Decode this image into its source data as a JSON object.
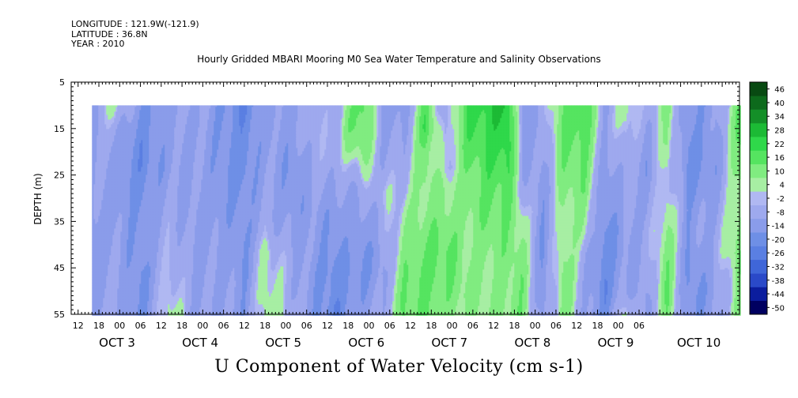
{
  "header": {
    "longitude": "LONGITUDE : 121.9W(-121.9)",
    "latitude": "LATITUDE : 36.8N",
    "year": "YEAR : 2010"
  },
  "chart_data": {
    "type": "heatmap",
    "title": "Hourly Gridded MBARI Mooring M0 Sea Water Temperature and Salinity Observations",
    "xlabel": "U Component of Water Velocity (cm s-1)",
    "ylabel": "DEPTH (m)",
    "ylim": [
      55,
      5
    ],
    "y_ticks": [
      55,
      45,
      35,
      25,
      15,
      5
    ],
    "x_range": [
      "OCT 2 10:00",
      "OCT 10 11:00"
    ],
    "data_extent_x": [
      "OCT 2 16:00",
      "OCT 10 11:00"
    ],
    "data_extent_depth": [
      10,
      55
    ],
    "x_hour_ticks": [
      "12",
      "18",
      "00",
      "06",
      "12",
      "18",
      "00",
      "06",
      "12",
      "18",
      "00",
      "06",
      "12",
      "18",
      "00",
      "06",
      "12",
      "18",
      "00",
      "06",
      "12",
      "18",
      "00",
      "06",
      "12",
      "18",
      "00",
      "06"
    ],
    "x_day_labels": [
      "OCT 3",
      "OCT 4",
      "OCT 5",
      "OCT 6",
      "OCT 7",
      "OCT 8",
      "OCT 9",
      "OCT 10"
    ],
    "colorbar": {
      "levels": [
        -50,
        -44,
        -38,
        -32,
        -26,
        -20,
        -14,
        -8,
        -2,
        4,
        10,
        16,
        22,
        28,
        34,
        40,
        46
      ],
      "label_values": [
        -50,
        -44,
        -38,
        -32,
        -26,
        -20,
        -14,
        -8,
        -2,
        4,
        10,
        16,
        22,
        28,
        34,
        40,
        46
      ],
      "colors_low": [
        "#000060",
        "#0b1d9e",
        "#2a49c8",
        "#3f66d8",
        "#5a7fe2",
        "#6e8fe6",
        "#8a9cea",
        "#9ea9ee",
        "#b0b8f2"
      ],
      "colors_high": [
        "#c8f0c0",
        "#a7eea3",
        "#80ec80",
        "#55e460",
        "#2fd84a",
        "#1cba35",
        "#148f28",
        "#0d6a1c",
        "#084a12"
      ]
    },
    "field_colors": {
      "neg_strong": "#3d66e6",
      "neg_weak": "#a3b0ef",
      "pos_weak": "#a8f0a4",
      "pos_strong": "#22e25a"
    },
    "depth_profile_cm_s": [
      {
        "time": "OCT 2 16:00",
        "values": [
          -8,
          -6,
          -6,
          -7,
          -8,
          -10,
          -12,
          -12,
          -12,
          -10,
          -8
        ]
      },
      {
        "time": "OCT 2 22:00",
        "values": [
          2,
          -4,
          -8,
          -10,
          -11,
          -10,
          -9,
          -8,
          -6,
          -6,
          -5
        ]
      },
      {
        "time": "OCT 3 06:00",
        "values": [
          -14,
          -16,
          -18,
          -18,
          -16,
          -14,
          -14,
          -15,
          -16,
          -16,
          -16
        ]
      },
      {
        "time": "OCT 3 14:00",
        "values": [
          -10,
          -9,
          -10,
          -10,
          -8,
          -6,
          -4,
          -2,
          0,
          2,
          4
        ]
      },
      {
        "time": "OCT 3 22:00",
        "values": [
          -6,
          -8,
          -8,
          -8,
          -9,
          -10,
          -10,
          -10,
          -9,
          -9,
          -8
        ]
      },
      {
        "time": "OCT 4 06:00",
        "values": [
          -14,
          -14,
          -14,
          -14,
          -12,
          -12,
          -10,
          -9,
          -8,
          -8,
          -8
        ]
      },
      {
        "time": "OCT 4 12:00",
        "values": [
          -20,
          -18,
          -18,
          -17,
          -16,
          -14,
          -14,
          -14,
          -14,
          -12,
          -12
        ]
      },
      {
        "time": "OCT 4 18:00",
        "values": [
          -10,
          -10,
          -9,
          -8,
          -7,
          -6,
          -4,
          2,
          3,
          4,
          4
        ]
      },
      {
        "time": "OCT 5 02:00",
        "values": [
          -10,
          -10,
          -12,
          -14,
          -14,
          -12,
          -10,
          -8,
          -6,
          -6,
          -4
        ]
      },
      {
        "time": "OCT 5 08:00",
        "values": [
          -4,
          -3,
          -4,
          -6,
          -8,
          -10,
          -10,
          -10,
          -12,
          -12,
          -12
        ]
      },
      {
        "time": "OCT 5 14:00",
        "values": [
          -6,
          -5,
          -4,
          -5,
          -8,
          -12,
          -14,
          -16,
          -18,
          -18,
          -20
        ]
      },
      {
        "time": "OCT 5 18:00",
        "values": [
          6,
          8,
          4,
          -4,
          -8,
          -10,
          -10,
          -12,
          -14,
          -14,
          -12
        ]
      },
      {
        "time": "OCT 5 22:00",
        "values": [
          14,
          12,
          8,
          2,
          -6,
          -10,
          -12,
          -14,
          -14,
          -12,
          -10
        ]
      },
      {
        "time": "OCT 6 04:00",
        "values": [
          -10,
          -8,
          -8,
          -6,
          -2,
          -4,
          -6,
          -10,
          -10,
          -8,
          -6
        ]
      },
      {
        "time": "OCT 6 10:00",
        "values": [
          -12,
          -10,
          -6,
          -4,
          -2,
          2,
          4,
          6,
          8,
          10,
          10
        ]
      },
      {
        "time": "OCT 6 16:00",
        "values": [
          12,
          16,
          10,
          8,
          6,
          6,
          8,
          10,
          12,
          10,
          10
        ]
      },
      {
        "time": "OCT 6 22:00",
        "values": [
          -8,
          -6,
          -4,
          -2,
          4,
          6,
          10,
          12,
          10,
          8,
          6
        ]
      },
      {
        "time": "OCT 7 04:00",
        "values": [
          16,
          14,
          12,
          8,
          6,
          6,
          4,
          4,
          6,
          6,
          4
        ]
      },
      {
        "time": "OCT 7 10:00",
        "values": [
          20,
          18,
          16,
          14,
          12,
          10,
          8,
          6,
          4,
          4,
          4
        ]
      },
      {
        "time": "OCT 7 16:00",
        "values": [
          24,
          22,
          20,
          16,
          12,
          10,
          8,
          8,
          6,
          6,
          6
        ]
      },
      {
        "time": "OCT 7 20:00",
        "values": [
          -12,
          -10,
          -8,
          -6,
          -4,
          2,
          4,
          6,
          8,
          8,
          8
        ]
      },
      {
        "time": "OCT 8 02:00",
        "values": [
          -6,
          -8,
          -8,
          -10,
          -12,
          -12,
          -14,
          -14,
          -14,
          -14,
          -12
        ]
      },
      {
        "time": "OCT 8 08:00",
        "values": [
          10,
          12,
          10,
          8,
          6,
          4,
          4,
          6,
          8,
          8,
          8
        ]
      },
      {
        "time": "OCT 8 14:00",
        "values": [
          16,
          14,
          12,
          10,
          8,
          4,
          2,
          -4,
          -6,
          -6,
          -8
        ]
      },
      {
        "time": "OCT 8 20:00",
        "values": [
          -8,
          -8,
          -10,
          -12,
          -14,
          -14,
          -16,
          -18,
          -18,
          -18,
          -16
        ]
      },
      {
        "time": "OCT 9 02:00",
        "values": [
          4,
          2,
          -2,
          -4,
          -6,
          -8,
          -10,
          -10,
          -8,
          -6,
          4
        ]
      },
      {
        "time": "OCT 9 08:00",
        "values": [
          -6,
          -8,
          -10,
          -12,
          -10,
          -8,
          -6,
          -6,
          -8,
          -10,
          -10
        ]
      },
      {
        "time": "OCT 9 14:00",
        "values": [
          6,
          4,
          4,
          2,
          2,
          4,
          6,
          8,
          10,
          10,
          8
        ]
      },
      {
        "time": "OCT 9 20:00",
        "values": [
          -14,
          -14,
          -16,
          -16,
          -14,
          -12,
          -12,
          -14,
          -16,
          -16,
          -14
        ]
      },
      {
        "time": "OCT 10 04:00",
        "values": [
          -10,
          -10,
          -12,
          -12,
          -10,
          -8,
          -6,
          -6,
          -8,
          -10,
          -10
        ]
      },
      {
        "time": "OCT 10 11:00",
        "values": [
          10,
          12,
          10,
          8,
          6,
          6,
          8,
          10,
          8,
          6,
          6
        ]
      }
    ]
  }
}
